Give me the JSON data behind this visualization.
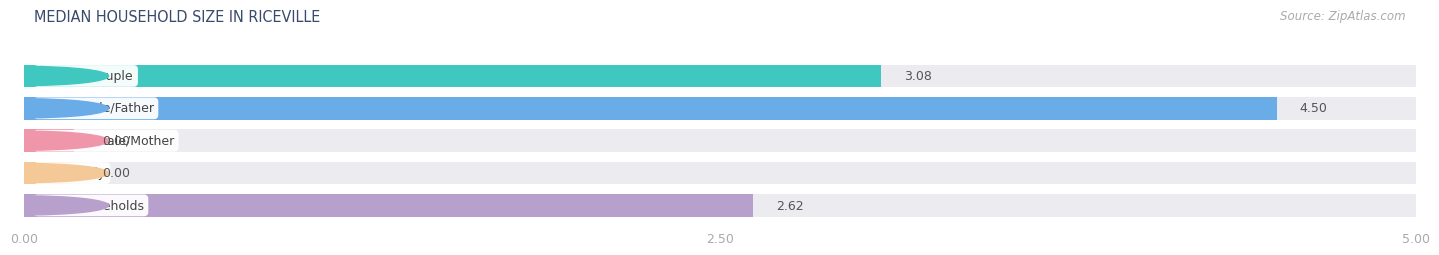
{
  "title": "MEDIAN HOUSEHOLD SIZE IN RICEVILLE",
  "source": "Source: ZipAtlas.com",
  "categories": [
    "Married-Couple",
    "Single Male/Father",
    "Single Female/Mother",
    "Non-family",
    "Total Households"
  ],
  "values": [
    3.08,
    4.5,
    0.0,
    0.0,
    2.62
  ],
  "bar_colors": [
    "#40c8c0",
    "#6aace8",
    "#f096aa",
    "#f5c898",
    "#b8a0cc"
  ],
  "bar_bg_color": "#ebebf0",
  "bg_between": "#ffffff",
  "xlim": [
    0,
    5.0
  ],
  "xticks": [
    0.0,
    2.5,
    5.0
  ],
  "xtick_labels": [
    "0.00",
    "2.50",
    "5.00"
  ],
  "title_color": "#3a4a6a",
  "label_color": "#444444",
  "value_color_dark": "#555555",
  "title_fontsize": 11.5,
  "label_fontsize": 9,
  "value_fontsize": 9,
  "source_fontsize": 8.5
}
